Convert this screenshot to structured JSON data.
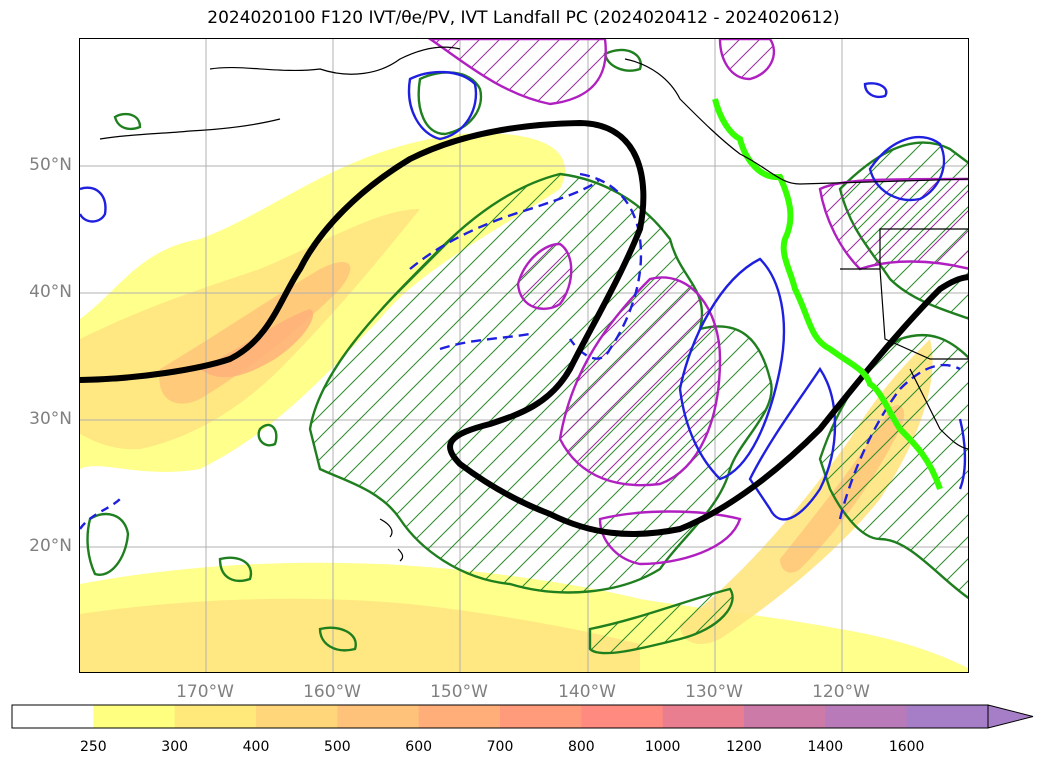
{
  "title": "2024020100 F120 IVT/θe/PV, IVT Landfall PC (2024020412 - 2024020612)",
  "map": {
    "lat_labels": [
      "50°N",
      "40°N",
      "30°N",
      "20°N"
    ],
    "lon_labels": [
      "170°W",
      "160°W",
      "150°W",
      "140°W",
      "130°W",
      "120°W"
    ]
  },
  "colorbar": {
    "levels": [
      "250",
      "300",
      "400",
      "500",
      "600",
      "700",
      "800",
      "1000",
      "1200",
      "1400",
      "1600"
    ],
    "colors": [
      "#ffffff",
      "#ffff80",
      "#ffe97a",
      "#ffd77a",
      "#ffc27a",
      "#ffae7a",
      "#ff9a7a",
      "#ff8a80",
      "#e87e90",
      "#cc7aa8",
      "#b87ab8",
      "#a67ec8"
    ]
  }
}
